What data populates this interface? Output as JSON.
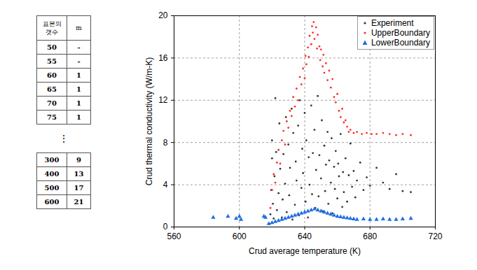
{
  "table": {
    "header": [
      "표본의 갯수",
      "m"
    ],
    "rows": [
      [
        "50",
        "-"
      ],
      [
        "55",
        "-"
      ],
      [
        "60",
        "1"
      ],
      [
        "65",
        "1"
      ],
      [
        "70",
        "1"
      ],
      [
        "75",
        "1"
      ]
    ],
    "ellipsis": "⋮",
    "rows_after": [
      [
        "300",
        "9"
      ],
      [
        "400",
        "13"
      ],
      [
        "500",
        "17"
      ],
      [
        "600",
        "21"
      ]
    ]
  },
  "chart_data": {
    "type": "scatter",
    "xlabel": "Crud average temperature (K)",
    "ylabel": "Crud thermal conductivity (W/m-K)",
    "xlim": [
      560,
      720
    ],
    "xticks": [
      560,
      600,
      640,
      680,
      720
    ],
    "ylim": [
      0,
      20
    ],
    "yticks": [
      0,
      4,
      8,
      12,
      16,
      20
    ],
    "grid": true,
    "legend": "upper right",
    "series": [
      {
        "name": "Experiment",
        "color": "#333333",
        "marker": "circle",
        "x": [
          618.5,
          619,
          619.5,
          620,
          620,
          620.5,
          621,
          621.5,
          622,
          622.5,
          623,
          624,
          624.5,
          625,
          626,
          626.5,
          627,
          628,
          628.5,
          629,
          630,
          630.5,
          631,
          632,
          632.5,
          633,
          634,
          634.5,
          635,
          636,
          636.5,
          637,
          638,
          638.5,
          639,
          640,
          640.5,
          641,
          642,
          642.5,
          643,
          644,
          644.5,
          645,
          646,
          646.5,
          647,
          648,
          648.5,
          649,
          650,
          650.5,
          651,
          652,
          652.5,
          653,
          654,
          654.5,
          655,
          656,
          656.5,
          657,
          658,
          658.5,
          659,
          660,
          660.5,
          661,
          662,
          663,
          663.5,
          664,
          665,
          666,
          667,
          668,
          669,
          670,
          671,
          672,
          674,
          676,
          678,
          680,
          684,
          688,
          692,
          696,
          700,
          705
        ],
        "values": [
          0.3,
          1.2,
          3.5,
          6.5,
          8.2,
          2.2,
          0.8,
          4.8,
          12.2,
          7.1,
          1.6,
          3.2,
          9.8,
          5.5,
          0.9,
          2.6,
          6.9,
          4.1,
          10.4,
          1.4,
          7.8,
          3.0,
          5.6,
          11.2,
          0.7,
          8.9,
          2.1,
          6.2,
          4.4,
          9.6,
          1.1,
          12.0,
          3.7,
          7.4,
          5.1,
          10.8,
          2.4,
          8.2,
          0.9,
          6.6,
          4.0,
          11.5,
          3.1,
          7.0,
          9.2,
          1.8,
          5.4,
          12.4,
          2.9,
          6.8,
          4.6,
          10.1,
          1.5,
          7.7,
          3.4,
          5.9,
          9.0,
          2.2,
          6.3,
          4.2,
          8.4,
          1.3,
          5.7,
          3.6,
          7.2,
          2.7,
          6.0,
          4.8,
          8.8,
          1.9,
          5.2,
          3.3,
          6.5,
          2.4,
          4.9,
          7.9,
          3.8,
          5.3,
          2.8,
          4.4,
          6.1,
          3.5,
          4.7,
          3.9,
          5.6,
          4.2,
          3.6,
          5.0,
          3.4,
          3.3
        ]
      },
      {
        "name": "UpperBoundary",
        "color": "#ff2a2a",
        "marker": "circle",
        "x": [
          619,
          620,
          621,
          622,
          623,
          624,
          625,
          626,
          627,
          628,
          629,
          630,
          631,
          632,
          633,
          634,
          635,
          636,
          637,
          638,
          639,
          640,
          640.5,
          641,
          642,
          642.5,
          643,
          644,
          644.5,
          645,
          645.5,
          646,
          647,
          647.5,
          648,
          649,
          649.5,
          650,
          651,
          651.5,
          652,
          653,
          654,
          655,
          656,
          657,
          658,
          659,
          660,
          661,
          662,
          663,
          664,
          665,
          666,
          667,
          668,
          670,
          672,
          675,
          678,
          681,
          684,
          688,
          692,
          696,
          700,
          705
        ],
        "values": [
          1.8,
          3.5,
          5.0,
          4.2,
          6.1,
          7.3,
          6.0,
          8.2,
          9.1,
          7.8,
          10.0,
          9.4,
          11.0,
          10.5,
          12.3,
          11.4,
          13.1,
          12.0,
          14.2,
          13.5,
          15.0,
          14.1,
          16.2,
          15.4,
          17.0,
          16.1,
          18.1,
          17.3,
          19.0,
          18.4,
          19.4,
          17.8,
          18.9,
          16.9,
          18.2,
          17.1,
          15.8,
          16.8,
          15.2,
          16.3,
          14.6,
          15.5,
          13.9,
          14.8,
          13.2,
          14.0,
          12.3,
          11.8,
          12.6,
          11.0,
          10.4,
          11.2,
          9.9,
          10.1,
          9.5,
          9.0,
          9.2,
          8.9,
          9.0,
          8.8,
          8.9,
          8.8,
          8.8,
          8.9,
          8.8,
          8.7,
          8.8,
          8.7
        ]
      },
      {
        "name": "LowerBoundary",
        "color": "#1f6fe0",
        "marker": "triangle",
        "x": [
          584,
          593,
          598,
          600,
          601,
          615,
          616,
          618,
          620,
          622,
          624,
          626,
          628,
          630,
          632,
          634,
          636,
          638,
          640,
          642,
          644,
          646,
          648,
          650,
          652,
          654,
          656,
          658,
          660,
          662,
          664,
          666,
          668,
          670,
          672,
          676,
          680,
          684,
          688,
          692,
          696,
          700,
          705
        ],
        "values": [
          0.9,
          1.0,
          0.8,
          1.0,
          0.7,
          1.0,
          0.9,
          0.3,
          0.4,
          0.5,
          0.6,
          0.7,
          0.8,
          0.9,
          1.0,
          1.1,
          1.2,
          1.3,
          1.4,
          1.5,
          1.6,
          1.7,
          1.6,
          1.5,
          1.4,
          1.3,
          1.2,
          1.1,
          1.0,
          0.95,
          0.9,
          0.85,
          0.8,
          0.75,
          0.7,
          0.75,
          0.7,
          0.7,
          0.75,
          0.7,
          0.7,
          0.75,
          0.8
        ]
      }
    ]
  }
}
